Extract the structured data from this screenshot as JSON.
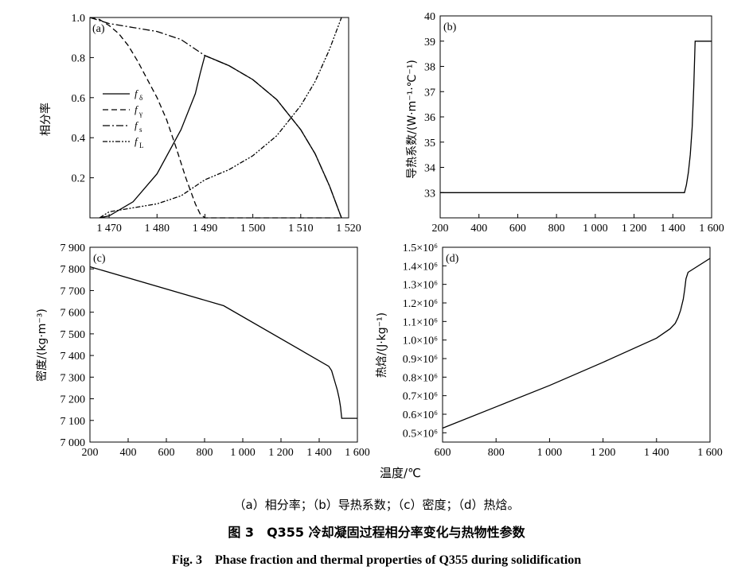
{
  "shared_xlabel": "温度/℃",
  "captions": {
    "sub": "（a）相分率；（b）导热系数；（c）密度；（d）热焓。",
    "cn": "图 3　Q355 冷却凝固过程相分率变化与热物性参数",
    "en": "Fig. 3　Phase fraction and thermal properties of Q355 during solidification"
  },
  "chart_data": [
    {
      "id": "a",
      "panel_label": "(a)",
      "type": "line",
      "ylabel": "相分率",
      "xlabel": "",
      "xlim": [
        1466,
        1520
      ],
      "ylim": [
        0,
        1.0
      ],
      "xticks": [
        1470,
        1480,
        1490,
        1500,
        1510,
        1520
      ],
      "xtick_labels": [
        "1 470",
        "1 480",
        "1 490",
        "1 500",
        "1 510",
        "1 520"
      ],
      "yticks": [
        0.2,
        0.4,
        0.6,
        0.8,
        1.0
      ],
      "ytick_labels": [
        "0.2",
        "0.4",
        "0.6",
        "0.8",
        "1.0"
      ],
      "legend": {
        "placement": "center-left",
        "entries": [
          {
            "main": "f",
            "sub": "δ",
            "series": 0
          },
          {
            "main": "f",
            "sub": "γ",
            "series": 1
          },
          {
            "main": "f",
            "sub": "s",
            "series": 2
          },
          {
            "main": "f",
            "sub": "L",
            "series": 3
          }
        ]
      },
      "series": [
        {
          "name": "fδ",
          "dash": "",
          "x": [
            1468,
            1470,
            1475,
            1480,
            1485,
            1488,
            1489,
            1490,
            1492,
            1495,
            1500,
            1505,
            1510,
            1513,
            1516,
            1518.5
          ],
          "y": [
            0.0,
            0.01,
            0.08,
            0.22,
            0.44,
            0.62,
            0.72,
            0.81,
            0.79,
            0.76,
            0.69,
            0.59,
            0.44,
            0.32,
            0.16,
            0.0
          ]
        },
        {
          "name": "fγ",
          "dash": "7,4",
          "x": [
            1466,
            1468,
            1470,
            1472,
            1474,
            1476,
            1478,
            1480,
            1482,
            1484,
            1486,
            1488,
            1489,
            1490,
            1500,
            1510,
            1518.5
          ],
          "y": [
            1.0,
            0.99,
            0.96,
            0.92,
            0.86,
            0.78,
            0.69,
            0.6,
            0.49,
            0.35,
            0.2,
            0.07,
            0.02,
            0.0,
            0.0,
            0.0,
            0.0
          ]
        },
        {
          "name": "fs",
          "dash": "9,3,2,3",
          "x": [
            1466,
            1470,
            1475,
            1480,
            1485,
            1490,
            1495,
            1500,
            1505,
            1510,
            1513,
            1516,
            1518.5
          ],
          "y": [
            1.0,
            0.97,
            0.95,
            0.93,
            0.89,
            0.81,
            0.76,
            0.69,
            0.59,
            0.44,
            0.32,
            0.16,
            0.0
          ]
        },
        {
          "name": "fL",
          "dash": "6,2,2,2,2,2",
          "x": [
            1468,
            1470,
            1475,
            1480,
            1485,
            1490,
            1495,
            1500,
            1505,
            1510,
            1513,
            1516,
            1518.5
          ],
          "y": [
            0.0,
            0.03,
            0.05,
            0.07,
            0.11,
            0.19,
            0.24,
            0.31,
            0.41,
            0.56,
            0.68,
            0.84,
            1.0
          ]
        }
      ]
    },
    {
      "id": "b",
      "panel_label": "(b)",
      "type": "line",
      "ylabel": "导热系数/(W·m⁻¹·℃⁻¹)",
      "xlabel": "",
      "xlim": [
        200,
        1600
      ],
      "ylim": [
        32,
        40
      ],
      "xticks": [
        200,
        400,
        600,
        800,
        1000,
        1200,
        1400,
        1600
      ],
      "xtick_labels": [
        "200",
        "400",
        "600",
        "800",
        "1 000",
        "1 200",
        "1 400",
        "1 600"
      ],
      "yticks": [
        33,
        34,
        35,
        36,
        37,
        38,
        39,
        40
      ],
      "ytick_labels": [
        "33",
        "34",
        "35",
        "36",
        "37",
        "38",
        "39",
        "40"
      ],
      "series": [
        {
          "x": [
            200,
            1460,
            1470,
            1480,
            1490,
            1500,
            1508,
            1515,
            1520,
            1600
          ],
          "y": [
            33,
            33,
            33.3,
            33.8,
            34.5,
            35.6,
            37.2,
            39.0,
            39.0,
            39.0
          ]
        }
      ]
    },
    {
      "id": "c",
      "panel_label": "(c)",
      "type": "line",
      "ylabel": "密度/(kg·m⁻³)",
      "xlabel": "",
      "xlim": [
        200,
        1600
      ],
      "ylim": [
        7000,
        7900
      ],
      "xticks": [
        200,
        400,
        600,
        800,
        1000,
        1200,
        1400,
        1600
      ],
      "xtick_labels": [
        "200",
        "400",
        "600",
        "800",
        "1 000",
        "1 200",
        "1 400",
        "1 600"
      ],
      "yticks": [
        7000,
        7100,
        7200,
        7300,
        7400,
        7500,
        7600,
        7700,
        7800,
        7900
      ],
      "ytick_labels": [
        "7 000",
        "7 100",
        "7 200",
        "7 300",
        "7 400",
        "7 500",
        "7 600",
        "7 700",
        "7 800",
        "7 900"
      ],
      "series": [
        {
          "x": [
            200,
            900,
            1450,
            1465,
            1475,
            1485,
            1495,
            1505,
            1512,
            1518,
            1600
          ],
          "y": [
            7810,
            7630,
            7350,
            7330,
            7300,
            7270,
            7240,
            7200,
            7160,
            7110,
            7110
          ]
        }
      ]
    },
    {
      "id": "d",
      "panel_label": "(d)",
      "type": "line",
      "ylabel": "热焓/(J·kg⁻¹)",
      "xlabel": "",
      "xlim": [
        600,
        1600
      ],
      "ylim": [
        450000,
        1500000
      ],
      "xticks": [
        600,
        800,
        1000,
        1200,
        1400,
        1600
      ],
      "xtick_labels": [
        "600",
        "800",
        "1 000",
        "1 200",
        "1 400",
        "1 600"
      ],
      "yticks": [
        500000,
        600000,
        700000,
        800000,
        900000,
        1000000,
        1100000,
        1200000,
        1300000,
        1400000,
        1500000
      ],
      "ytick_labels": [
        "0.5×10⁶",
        "0.6×10⁶",
        "0.7×10⁶",
        "0.8×10⁶",
        "0.9×10⁶",
        "1.0×10⁶",
        "1.1×10⁶",
        "1.2×10⁶",
        "1.3×10⁶",
        "1.4×10⁶",
        "1.5×10⁶"
      ],
      "series": [
        {
          "x": [
            600,
            800,
            1000,
            1200,
            1400,
            1450,
            1470,
            1480,
            1490,
            1500,
            1505,
            1510,
            1518,
            1600
          ],
          "y": [
            525000,
            640000,
            755000,
            880000,
            1010000,
            1060000,
            1090000,
            1120000,
            1160000,
            1220000,
            1270000,
            1330000,
            1365000,
            1440000
          ]
        }
      ]
    }
  ]
}
